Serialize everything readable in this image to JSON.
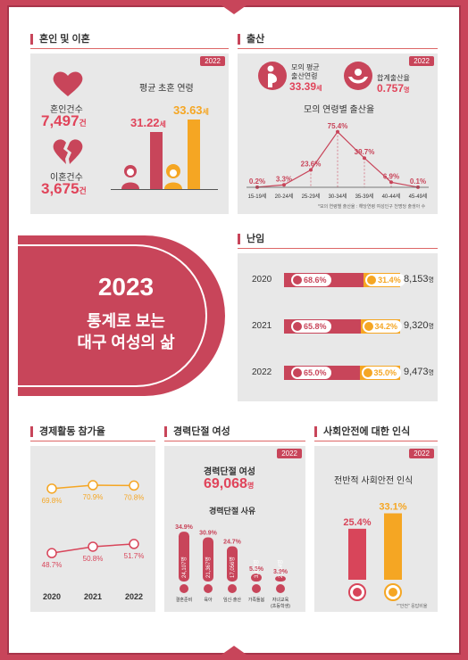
{
  "marriage": {
    "section_title": "혼인 및 이혼",
    "year_badge": "2022",
    "marriage_label": "혼인건수",
    "marriage_value": "7,497",
    "marriage_unit": "건",
    "divorce_label": "이혼건수",
    "divorce_value": "3,675",
    "divorce_unit": "건",
    "age_title": "평균 초혼 연령",
    "male_age": "31.22",
    "female_age": "33.63",
    "age_unit": "세"
  },
  "birth": {
    "section_title": "출산",
    "year_badge": "2022",
    "mother_label_1": "모의 평균",
    "mother_label_2": "출산연령",
    "mother_value": "33.39",
    "mother_unit": "세",
    "fertility_label": "합계출산율",
    "fertility_value": "0.757",
    "fertility_unit": "명",
    "chart_title": "모의 연령별 출산율",
    "footnote": "*모의 연령별 출산율 : 해당연령 여성인구 천명당 출생아 수"
  },
  "infertility": {
    "section_title": "난임",
    "rows": [
      {
        "year": "2020",
        "a": "68.6",
        "b": "31.4",
        "count": "8,153",
        "unit": "명"
      },
      {
        "year": "2021",
        "a": "65.8",
        "b": "34.2",
        "count": "9,320",
        "unit": "명"
      },
      {
        "year": "2022",
        "a": "65.0",
        "b": "35.0",
        "count": "9,473",
        "unit": "명"
      }
    ],
    "pct": "%"
  },
  "banner": {
    "line1": "2023",
    "line2": "통계로 보는",
    "line3": "대구 여성의 삶"
  },
  "economic": {
    "section_title": "경제활동 참가율"
  },
  "career": {
    "section_title": "경력단절 여성",
    "year_badge": "2022",
    "title": "경력단절 여성",
    "value": "69,068",
    "unit": "명",
    "reason_title": "경력단절 사유"
  },
  "safety": {
    "section_title": "사회안전에 대한 인식",
    "year_badge": "2022",
    "title": "전반적 사회안전 인식",
    "male": "25.4",
    "female": "33.1",
    "pct": "%",
    "footnote": "*\"안전\" 응답비율"
  },
  "chart_data": [
    {
      "type": "line",
      "title": "모의 연령별 출산율",
      "categories": [
        "15-19세",
        "20-24세",
        "25-29세",
        "30-34세",
        "35-39세",
        "40-44세",
        "45-49세"
      ],
      "values": [
        0.2,
        3.3,
        23.6,
        75.4,
        39.7,
        6.9,
        0.1
      ],
      "ylim": [
        0,
        80
      ]
    },
    {
      "type": "line",
      "categories": [
        "2020",
        "2021",
        "2022"
      ],
      "series": [
        {
          "values": [
            69.8,
            70.9,
            70.8
          ],
          "color": "#f5a623"
        },
        {
          "values": [
            48.7,
            50.8,
            51.7
          ],
          "color": "#d8455a"
        }
      ],
      "ylim": [
        40,
        75
      ]
    },
    {
      "type": "bar",
      "title": "경력단절 사유",
      "categories": [
        "결혼준비",
        "육아",
        "임신·출산",
        "가족돌봄",
        "자녀교육\n(초등학생)"
      ],
      "values": [
        34.9,
        30.9,
        24.7,
        5.5,
        3.9
      ],
      "counts": [
        "24,107명",
        "21,367명",
        "17,056명",
        "3,823명",
        "2,714명"
      ],
      "ylim": [
        0,
        40
      ]
    },
    {
      "type": "bar",
      "title": "전반적 사회안전 인식",
      "categories": [
        "남자",
        "여자"
      ],
      "values": [
        25.4,
        33.1
      ],
      "colors": [
        "#d8455a",
        "#f5a623"
      ],
      "ylim": [
        0,
        40
      ]
    }
  ]
}
